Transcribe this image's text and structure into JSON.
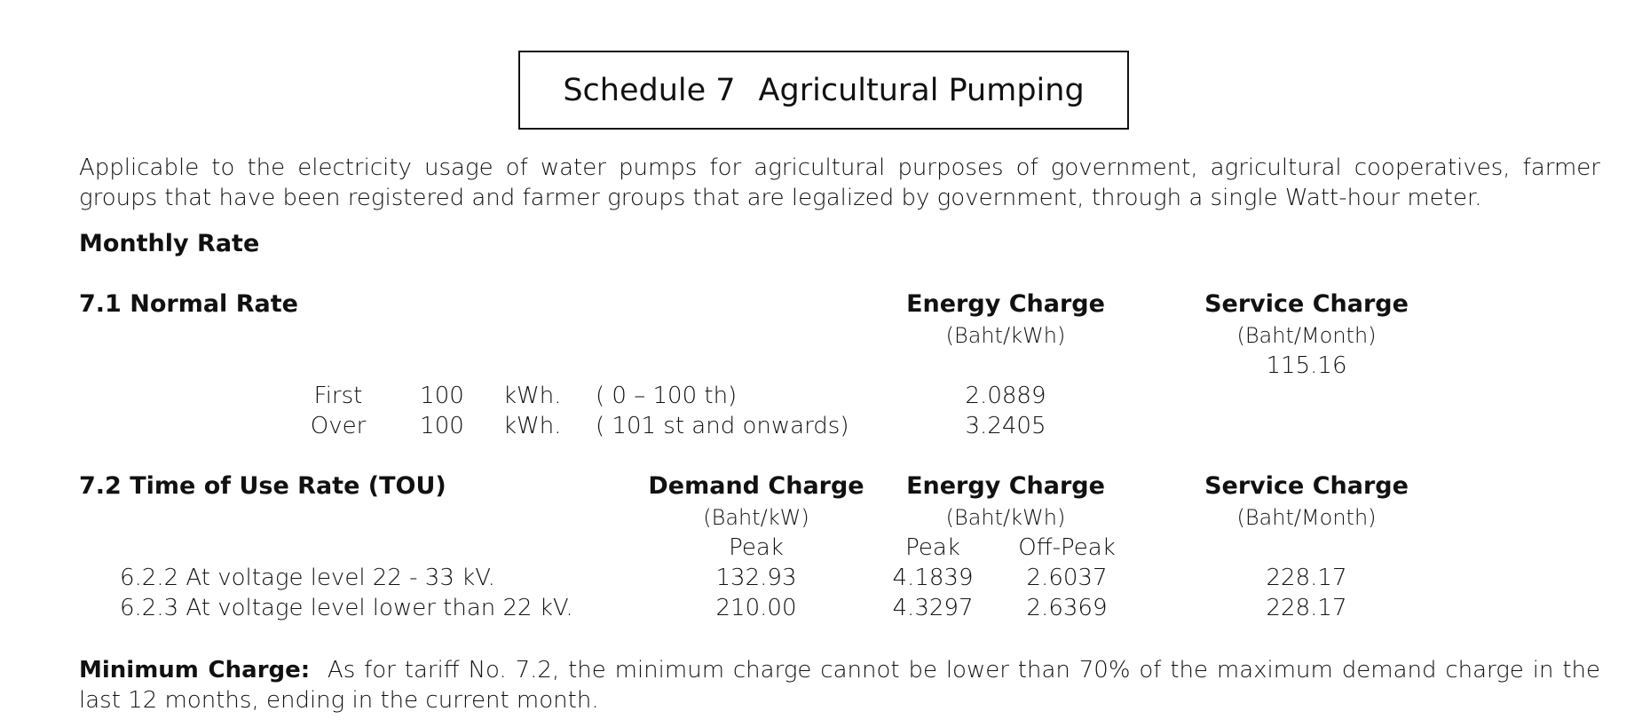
{
  "title": {
    "schedule": "Schedule 7",
    "name": "Agricultural Pumping"
  },
  "intro": "Applicable to the electricity usage of water pumps for agricultural purposes of government, agricultural cooperatives, farmer groups that have been registered and farmer groups that are legalized by government, through a single Watt-hour meter.",
  "monthly_rate_heading": "Monthly Rate",
  "normal_rate": {
    "heading": "7.1 Normal Rate",
    "energy_header": "Energy Charge",
    "energy_unit": "(Baht/kWh)",
    "service_header": "Service Charge",
    "service_unit": "(Baht/Month)",
    "service_value": "115.16",
    "rows": [
      {
        "label": "First",
        "amount": "100",
        "unit": "kWh.",
        "range": "( 0 – 100 th)",
        "energy": "2.0889"
      },
      {
        "label": "Over",
        "amount": "100",
        "unit": "kWh.",
        "range": "( 101 st and onwards)",
        "energy": "3.2405"
      }
    ]
  },
  "tou_rate": {
    "heading": "7.2 Time of Use Rate (TOU)",
    "demand_header": "Demand Charge",
    "demand_unit": "(Baht/kW)",
    "energy_header": "Energy Charge",
    "energy_unit": "(Baht/kWh)",
    "service_header": "Service Charge",
    "service_unit": "(Baht/Month)",
    "demand_peak": "Peak",
    "energy_peak": "Peak",
    "energy_offpeak": "Off-Peak",
    "rows": [
      {
        "label": "6.2.2 At voltage level 22 - 33 kV.",
        "demand": "132.93",
        "peak": "4.1839",
        "offpeak": "2.6037",
        "service": "228.17"
      },
      {
        "label": "6.2.3 At voltage level lower than 22 kV.",
        "demand": "210.00",
        "peak": "4.3297",
        "offpeak": "2.6369",
        "service": "228.17"
      }
    ]
  },
  "minimum_charge": {
    "label": "Minimum Charge:",
    "text": "As for tariff No. 7.2, the minimum charge cannot be lower than 70% of the maximum demand charge in the last 12 months, ending in the current month."
  }
}
